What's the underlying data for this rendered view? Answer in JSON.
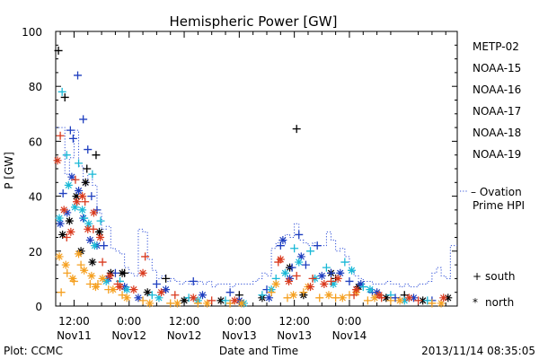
{
  "chart_data": {
    "type": "scatter",
    "title": "Hemispheric Power [GW]",
    "xlabel": "Date and Time",
    "ylabel": "P [GW]",
    "footer_left": "Plot: CCMC",
    "footer_right": "2013/11/14 08:35:05",
    "ylim": [
      0,
      100
    ],
    "yticks": [
      0,
      20,
      40,
      60,
      80,
      100
    ],
    "xlim_hours": [
      -16,
      71.5
    ],
    "xticks": [
      {
        "hour": -12,
        "time": "12:00",
        "date": "Nov11"
      },
      {
        "hour": 0,
        "time": "0:00",
        "date": "Nov12"
      },
      {
        "hour": 12,
        "time": "12:00",
        "date": "Nov12"
      },
      {
        "hour": 24,
        "time": "0:00",
        "date": "Nov13"
      },
      {
        "hour": 36,
        "time": "12:00",
        "date": "Nov13"
      },
      {
        "hour": 48,
        "time": "0:00",
        "date": "Nov14"
      }
    ],
    "legend": {
      "series_placement": "right",
      "ovation_label": "Ovation Prime HPI",
      "marker_key": [
        {
          "marker": "+",
          "label": "south"
        },
        {
          "marker": "*",
          "label": "north"
        }
      ]
    },
    "series": [
      {
        "name": "METP-02",
        "color": "#000000",
        "south": [
          [
            -15.4,
            93
          ],
          [
            -14.0,
            76
          ],
          [
            -9.2,
            50
          ],
          [
            -7.2,
            55
          ],
          [
            -1.0,
            12
          ],
          [
            8.0,
            10
          ],
          [
            24.0,
            4
          ],
          [
            36.5,
            64.5
          ],
          [
            45.0,
            10
          ],
          [
            60.0,
            4
          ]
        ],
        "north": [
          [
            -14.5,
            26
          ],
          [
            -13.0,
            31
          ],
          [
            -11.5,
            40
          ],
          [
            -10.5,
            20
          ],
          [
            -9.5,
            45
          ],
          [
            -8.0,
            16
          ],
          [
            -6.5,
            27
          ],
          [
            -4.0,
            12
          ],
          [
            -1.5,
            12
          ],
          [
            4.0,
            5
          ],
          [
            12.0,
            2
          ],
          [
            20.0,
            2
          ],
          [
            29.0,
            3
          ],
          [
            35.0,
            14
          ],
          [
            38.0,
            4
          ],
          [
            44.0,
            12
          ],
          [
            50.0,
            7
          ],
          [
            56.0,
            3
          ],
          [
            64.0,
            2
          ],
          [
            69.5,
            3
          ]
        ]
      },
      {
        "name": "NOAA-15",
        "color": "#1f3fbf",
        "south": [
          [
            -14.4,
            41
          ],
          [
            -12.8,
            64
          ],
          [
            -12.2,
            61
          ],
          [
            -11.2,
            84
          ],
          [
            -10.0,
            68
          ],
          [
            -9.0,
            57
          ],
          [
            -8.2,
            40
          ],
          [
            -7.0,
            35
          ],
          [
            -5.5,
            22
          ],
          [
            -3.0,
            12
          ],
          [
            6.0,
            8
          ],
          [
            14.0,
            9
          ],
          [
            22.0,
            5
          ],
          [
            30.0,
            6
          ],
          [
            33.0,
            22
          ],
          [
            35.5,
            14
          ],
          [
            37.0,
            26
          ],
          [
            38.5,
            15
          ],
          [
            41.0,
            22
          ],
          [
            44.0,
            12
          ],
          [
            48.0,
            9
          ],
          [
            53.0,
            5
          ],
          [
            58.0,
            3
          ],
          [
            66.0,
            2
          ]
        ],
        "north": [
          [
            -15.0,
            30
          ],
          [
            -13.5,
            34
          ],
          [
            -12.5,
            47
          ],
          [
            -11.0,
            42
          ],
          [
            -10.0,
            32
          ],
          [
            -8.5,
            24
          ],
          [
            -7.0,
            22
          ],
          [
            -4.5,
            10
          ],
          [
            -1.0,
            7
          ],
          [
            2.0,
            3
          ],
          [
            8.0,
            6
          ],
          [
            16.0,
            4
          ],
          [
            24.0,
            2
          ],
          [
            30.5,
            3
          ],
          [
            33.5,
            24
          ],
          [
            35.0,
            10
          ],
          [
            37.5,
            18
          ],
          [
            42.0,
            11
          ],
          [
            46.0,
            12
          ],
          [
            50.5,
            8
          ],
          [
            54.0,
            5
          ],
          [
            62.0,
            3
          ]
        ]
      },
      {
        "name": "NOAA-16",
        "color": "#19b8d6",
        "south": [
          [
            -14.6,
            78
          ],
          [
            -13.6,
            55
          ],
          [
            -11.0,
            52
          ],
          [
            -9.8,
            32
          ],
          [
            -8.0,
            48
          ],
          [
            -6.2,
            31
          ],
          [
            -2.0,
            9
          ],
          [
            5.0,
            4
          ],
          [
            13.0,
            3
          ],
          [
            21.0,
            2
          ],
          [
            29.0,
            4
          ],
          [
            32.0,
            10
          ],
          [
            36.0,
            21
          ],
          [
            39.5,
            20
          ],
          [
            43.0,
            14
          ],
          [
            47.0,
            16
          ],
          [
            51.0,
            7
          ],
          [
            57.0,
            4
          ],
          [
            65.0,
            2
          ]
        ],
        "north": [
          [
            -15.2,
            32
          ],
          [
            -13.2,
            44
          ],
          [
            -11.8,
            36
          ],
          [
            -10.2,
            35
          ],
          [
            -8.8,
            30
          ],
          [
            -7.5,
            22
          ],
          [
            -5.0,
            9
          ],
          [
            -0.5,
            6
          ],
          [
            6.5,
            3
          ],
          [
            15.0,
            2
          ],
          [
            25.0,
            1
          ],
          [
            31.0,
            6
          ],
          [
            34.0,
            12
          ],
          [
            37.0,
            16
          ],
          [
            40.5,
            10
          ],
          [
            44.5,
            8
          ],
          [
            48.5,
            13
          ],
          [
            52.5,
            6
          ],
          [
            60.0,
            2
          ]
        ]
      },
      {
        "name": "NOAA-17",
        "color": "#2fd65f",
        "south": [],
        "north": []
      },
      {
        "name": "NOAA-18",
        "color": "#f5a020",
        "south": [
          [
            -14.8,
            5
          ],
          [
            -13.5,
            12
          ],
          [
            -12.0,
            9
          ],
          [
            -10.5,
            15
          ],
          [
            -8.5,
            8
          ],
          [
            -6.8,
            8
          ],
          [
            -4.5,
            6
          ],
          [
            -1.5,
            4
          ],
          [
            3.0,
            2
          ],
          [
            9.0,
            1
          ],
          [
            15.0,
            1
          ],
          [
            22.0,
            1
          ],
          [
            31.0,
            5
          ],
          [
            34.5,
            3
          ],
          [
            38.0,
            5
          ],
          [
            41.5,
            3
          ],
          [
            45.0,
            3
          ],
          [
            48.0,
            4
          ],
          [
            52.0,
            2
          ],
          [
            57.0,
            2
          ],
          [
            66.0,
            1
          ]
        ],
        "north": [
          [
            -15.2,
            18
          ],
          [
            -13.8,
            15
          ],
          [
            -12.3,
            10
          ],
          [
            -11.0,
            19
          ],
          [
            -9.8,
            13
          ],
          [
            -8.2,
            11
          ],
          [
            -7.3,
            7
          ],
          [
            -5.8,
            10
          ],
          [
            -3.5,
            6
          ],
          [
            -0.5,
            3
          ],
          [
            4.5,
            1
          ],
          [
            10.5,
            1
          ],
          [
            17.0,
            1
          ],
          [
            24.5,
            1
          ],
          [
            32.0,
            8
          ],
          [
            35.8,
            4
          ],
          [
            39.0,
            7
          ],
          [
            43.5,
            4
          ],
          [
            46.5,
            3
          ],
          [
            49.5,
            5
          ],
          [
            53.5,
            3
          ],
          [
            59.0,
            2
          ],
          [
            68.0,
            1
          ]
        ]
      },
      {
        "name": "NOAA-19",
        "color": "#d93a1e",
        "south": [
          [
            -15.0,
            62
          ],
          [
            -13.6,
            25
          ],
          [
            -11.7,
            46
          ],
          [
            -9.6,
            38
          ],
          [
            -7.8,
            28
          ],
          [
            -5.8,
            16
          ],
          [
            -2.5,
            8
          ],
          [
            3.5,
            18
          ],
          [
            10.0,
            4
          ],
          [
            18.0,
            2
          ],
          [
            32.5,
            16
          ],
          [
            36.5,
            11
          ],
          [
            40.0,
            10
          ],
          [
            44.0,
            9
          ],
          [
            49.0,
            4
          ],
          [
            55.0,
            3
          ],
          [
            63.0,
            2
          ]
        ],
        "north": [
          [
            -15.6,
            53
          ],
          [
            -14.2,
            35
          ],
          [
            -12.7,
            27
          ],
          [
            -11.4,
            38
          ],
          [
            -10.2,
            40
          ],
          [
            -9.0,
            28
          ],
          [
            -7.7,
            34
          ],
          [
            -6.3,
            25
          ],
          [
            -4.2,
            11
          ],
          [
            -2.0,
            7
          ],
          [
            1.0,
            6
          ],
          [
            3.0,
            12
          ],
          [
            7.0,
            5
          ],
          [
            14.0,
            3
          ],
          [
            23.0,
            2
          ],
          [
            33.0,
            17
          ],
          [
            34.8,
            9
          ],
          [
            39.5,
            7
          ],
          [
            42.5,
            8
          ],
          [
            45.5,
            10
          ],
          [
            49.5,
            6
          ],
          [
            54.5,
            4
          ],
          [
            61.0,
            3
          ],
          [
            68.5,
            3
          ]
        ]
      }
    ],
    "ovation_prime": {
      "label": "Ovation Prime HPI",
      "color": "#3050d8",
      "points": [
        [
          -16,
          65
        ],
        [
          -15,
          65
        ],
        [
          -14,
          48
        ],
        [
          -13,
          54
        ],
        [
          -12,
          64
        ],
        [
          -11,
          51
        ],
        [
          -10,
          44
        ],
        [
          -9,
          48
        ],
        [
          -8,
          44
        ],
        [
          -7,
          34
        ],
        [
          -6,
          28
        ],
        [
          -5,
          29
        ],
        [
          -4,
          21
        ],
        [
          -3,
          20
        ],
        [
          -2,
          19
        ],
        [
          -1,
          14
        ],
        [
          0,
          12
        ],
        [
          1,
          11
        ],
        [
          2,
          28
        ],
        [
          3,
          27
        ],
        [
          4,
          17
        ],
        [
          5,
          13
        ],
        [
          6,
          10
        ],
        [
          7,
          11
        ],
        [
          8,
          9
        ],
        [
          9,
          10
        ],
        [
          10,
          9
        ],
        [
          11,
          8
        ],
        [
          12,
          9
        ],
        [
          13,
          8
        ],
        [
          14,
          8
        ],
        [
          15,
          9
        ],
        [
          16,
          8
        ],
        [
          17,
          9
        ],
        [
          18,
          7
        ],
        [
          19,
          8
        ],
        [
          20,
          8
        ],
        [
          21,
          8
        ],
        [
          22,
          7
        ],
        [
          23,
          8
        ],
        [
          24,
          8
        ],
        [
          25,
          8
        ],
        [
          26,
          8
        ],
        [
          27,
          9
        ],
        [
          28,
          10
        ],
        [
          29,
          12
        ],
        [
          30,
          11
        ],
        [
          31,
          21
        ],
        [
          32,
          23
        ],
        [
          33,
          22
        ],
        [
          34,
          26
        ],
        [
          35,
          25
        ],
        [
          36,
          30
        ],
        [
          37,
          24
        ],
        [
          38,
          23
        ],
        [
          39,
          22
        ],
        [
          40,
          23
        ],
        [
          41,
          22
        ],
        [
          42,
          22
        ],
        [
          43,
          27
        ],
        [
          44,
          24
        ],
        [
          45,
          20
        ],
        [
          46,
          21
        ],
        [
          47,
          18
        ],
        [
          48,
          13
        ],
        [
          49,
          11
        ],
        [
          50,
          10
        ],
        [
          51,
          9
        ],
        [
          52,
          9
        ],
        [
          53,
          8
        ],
        [
          54,
          8
        ],
        [
          55,
          8
        ],
        [
          56,
          9
        ],
        [
          57,
          8
        ],
        [
          58,
          8
        ],
        [
          59,
          7
        ],
        [
          60,
          8
        ],
        [
          61,
          7
        ],
        [
          62,
          7
        ],
        [
          63,
          8
        ],
        [
          64,
          8
        ],
        [
          65,
          9
        ],
        [
          66,
          12
        ],
        [
          67,
          14
        ],
        [
          68,
          11
        ],
        [
          69,
          10
        ],
        [
          70,
          22
        ],
        [
          71,
          22
        ]
      ]
    }
  }
}
